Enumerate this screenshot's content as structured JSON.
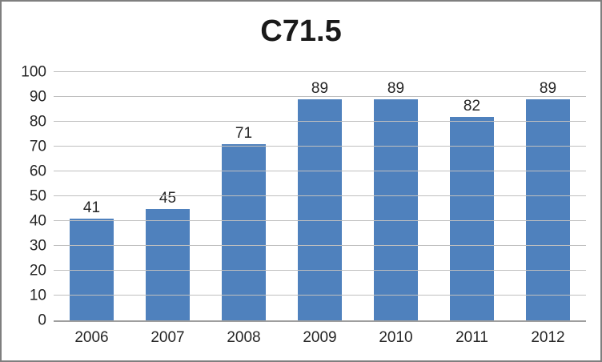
{
  "chart_data": {
    "type": "bar",
    "title": "C71.5",
    "categories": [
      "2006",
      "2007",
      "2008",
      "2009",
      "2010",
      "2011",
      "2012"
    ],
    "values": [
      41,
      45,
      71,
      89,
      89,
      82,
      89
    ],
    "data_labels_shown": true,
    "xlabel": "",
    "ylabel": "",
    "ylim": [
      0,
      100
    ],
    "ytick_step": 10,
    "yticks": [
      0,
      10,
      20,
      30,
      40,
      50,
      60,
      70,
      80,
      90,
      100
    ],
    "grid": "horizontal",
    "legend": "none",
    "bar_color": "#4f81bd",
    "gridline_color": "#bfbfbf",
    "axis_line_color": "#9e9e9e",
    "text_color": "#262626",
    "frame_border_color": "#7f7f7f",
    "background_color": "#ffffff"
  }
}
